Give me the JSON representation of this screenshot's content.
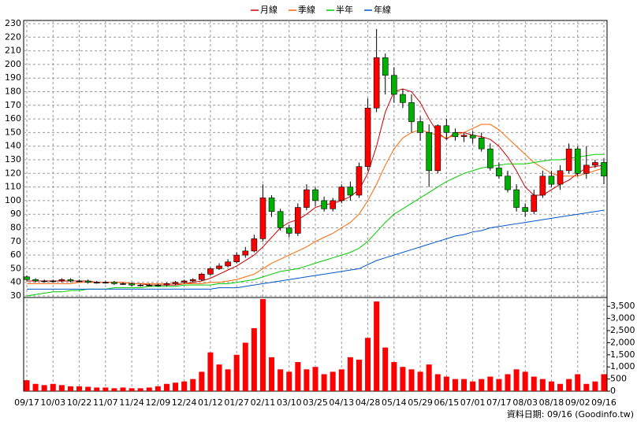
{
  "chart_data": {
    "type": "candlestick",
    "categories": [
      "09/17",
      null,
      null,
      "10/03",
      null,
      null,
      "10/22",
      null,
      null,
      "11/07",
      null,
      null,
      "11/24",
      null,
      null,
      "12/09",
      null,
      null,
      "12/24",
      null,
      null,
      "01/12",
      null,
      null,
      "01/27",
      null,
      null,
      "02/11",
      null,
      null,
      "03/10",
      null,
      null,
      "03/25",
      null,
      null,
      "04/13",
      null,
      null,
      "04/28",
      null,
      null,
      "05/14",
      null,
      null,
      "05/29",
      null,
      null,
      "06/15",
      null,
      null,
      "07/01",
      null,
      null,
      "07/17",
      null,
      null,
      "08/03",
      null,
      null,
      "08/18",
      null,
      null,
      "09/02",
      null,
      null,
      "09/16"
    ],
    "open": [
      44,
      42,
      41,
      41,
      41,
      42,
      41,
      41,
      40,
      40,
      40,
      39,
      39,
      38,
      38,
      38,
      38,
      39,
      40,
      41,
      42,
      46,
      50,
      52,
      55,
      60,
      63,
      72,
      102,
      92,
      80,
      76,
      95,
      108,
      100,
      94,
      100,
      110,
      104,
      125,
      168,
      205,
      192,
      178,
      172,
      158,
      150,
      122,
      155,
      150,
      147,
      148,
      146,
      138,
      124,
      118,
      108,
      95,
      92,
      104,
      118,
      112,
      122,
      138,
      120,
      126,
      128
    ],
    "high": [
      45,
      43,
      42,
      42,
      43,
      43,
      42,
      42,
      41,
      41,
      41,
      40,
      40,
      39,
      39,
      39,
      40,
      41,
      42,
      43,
      47,
      51,
      54,
      57,
      62,
      66,
      75,
      112,
      104,
      94,
      82,
      98,
      112,
      110,
      103,
      102,
      112,
      114,
      128,
      175,
      226,
      208,
      198,
      182,
      178,
      162,
      156,
      156,
      160,
      153,
      150,
      151,
      150,
      142,
      128,
      122,
      112,
      98,
      108,
      122,
      122,
      126,
      142,
      140,
      140,
      130,
      131
    ],
    "low": [
      41,
      40,
      40,
      40,
      40,
      40,
      40,
      39,
      39,
      39,
      38,
      38,
      37,
      37,
      37,
      37,
      37,
      38,
      39,
      40,
      41,
      45,
      49,
      51,
      54,
      58,
      62,
      70,
      88,
      78,
      73,
      74,
      93,
      96,
      92,
      92,
      98,
      100,
      102,
      122,
      165,
      178,
      172,
      168,
      150,
      144,
      110,
      120,
      145,
      144,
      143,
      142,
      136,
      122,
      116,
      106,
      92,
      88,
      90,
      102,
      110,
      108,
      120,
      118,
      116,
      124,
      112
    ],
    "close": [
      42,
      41,
      41,
      41,
      42,
      41,
      41,
      40,
      40,
      40,
      39,
      39,
      38,
      38,
      38,
      38,
      39,
      40,
      41,
      42,
      46,
      50,
      52,
      55,
      60,
      63,
      72,
      102,
      92,
      80,
      76,
      95,
      108,
      100,
      94,
      100,
      110,
      104,
      125,
      168,
      205,
      192,
      178,
      172,
      158,
      150,
      122,
      155,
      150,
      147,
      148,
      146,
      138,
      124,
      118,
      108,
      95,
      92,
      104,
      118,
      112,
      122,
      138,
      120,
      126,
      128,
      118
    ],
    "up_color": "#ff0000",
    "down_color": "#00b000",
    "series": [
      {
        "name": "月線",
        "color": "#cc0000",
        "values": [
          41,
          41,
          41,
          41,
          41,
          41,
          41,
          41,
          40,
          40,
          40,
          40,
          39,
          39,
          38,
          38,
          38,
          38,
          39,
          40,
          41,
          43,
          46,
          49,
          52,
          56,
          60,
          66,
          73,
          80,
          84,
          86,
          90,
          95,
          97,
          98,
          100,
          103,
          108,
          120,
          140,
          165,
          180,
          182,
          180,
          172,
          160,
          150,
          145,
          150,
          150,
          148,
          147,
          145,
          140,
          132,
          122,
          110,
          104,
          104,
          108,
          112,
          115,
          120,
          124,
          125,
          126
        ]
      },
      {
        "name": "季線",
        "color": "#ff6600",
        "values": [
          39,
          39,
          39,
          39,
          39,
          39,
          40,
          40,
          40,
          40,
          40,
          40,
          39,
          39,
          39,
          39,
          39,
          39,
          39,
          39,
          39,
          40,
          40,
          41,
          42,
          44,
          46,
          50,
          54,
          57,
          60,
          63,
          66,
          70,
          73,
          76,
          80,
          84,
          90,
          100,
          112,
          126,
          138,
          146,
          150,
          152,
          150,
          148,
          146,
          148,
          150,
          153,
          156,
          156,
          152,
          146,
          140,
          134,
          128,
          124,
          120,
          118,
          118,
          118,
          120,
          122,
          124
        ]
      },
      {
        "name": "半年",
        "color": "#00cc00",
        "values": [
          30,
          31,
          32,
          33,
          33,
          34,
          34,
          35,
          35,
          35,
          36,
          36,
          36,
          36,
          37,
          37,
          37,
          37,
          38,
          38,
          38,
          38,
          39,
          39,
          40,
          41,
          42,
          44,
          46,
          48,
          49,
          50,
          52,
          54,
          56,
          58,
          60,
          62,
          65,
          70,
          77,
          84,
          90,
          94,
          98,
          102,
          106,
          110,
          114,
          117,
          120,
          122,
          124,
          125,
          126,
          127,
          127,
          127,
          128,
          129,
          130,
          130,
          131,
          132,
          133,
          134,
          134
        ]
      },
      {
        "name": "年線",
        "color": "#0055cc",
        "values": [
          35,
          35,
          35,
          35,
          35,
          35,
          35,
          35,
          35,
          35,
          35,
          35,
          35,
          35,
          35,
          35,
          35,
          35,
          35,
          35,
          35,
          35,
          36,
          36,
          36,
          37,
          38,
          39,
          40,
          41,
          42,
          43,
          44,
          45,
          46,
          47,
          48,
          49,
          50,
          53,
          56,
          58,
          60,
          62,
          64,
          66,
          68,
          70,
          72,
          74,
          75,
          77,
          78,
          80,
          81,
          82,
          83,
          84,
          85,
          86,
          87,
          88,
          89,
          90,
          91,
          92,
          93
        ]
      }
    ],
    "ylim": [
      30,
      230
    ],
    "yticks": [
      30,
      40,
      50,
      60,
      70,
      80,
      90,
      100,
      110,
      120,
      130,
      140,
      150,
      160,
      170,
      180,
      190,
      200,
      210,
      220,
      230
    ],
    "grid": true,
    "volume": {
      "color": "#ff0000",
      "values": [
        450,
        300,
        250,
        300,
        250,
        200,
        200,
        180,
        150,
        150,
        120,
        150,
        120,
        120,
        150,
        200,
        300,
        350,
        400,
        500,
        800,
        1600,
        1100,
        900,
        1500,
        2000,
        2600,
        3800,
        1400,
        900,
        800,
        1200,
        900,
        1000,
        700,
        800,
        900,
        1400,
        1300,
        2200,
        3700,
        1800,
        1200,
        1000,
        900,
        800,
        1100,
        700,
        600,
        500,
        500,
        400,
        500,
        600,
        500,
        700,
        900,
        800,
        600,
        500,
        400,
        300,
        500,
        700,
        300,
        400,
        700
      ],
      "ylim": [
        0,
        3800
      ],
      "yticks": [
        0,
        500,
        {
          "value": 1000,
          "label": "1,000"
        },
        {
          "value": 1500,
          "label": "1,500"
        },
        {
          "value": 2000,
          "label": "2,000"
        },
        {
          "value": 2500,
          "label": "2,500"
        },
        {
          "value": 3000,
          "label": "3,000"
        },
        {
          "value": 3500,
          "label": "3,500"
        }
      ]
    }
  },
  "footer": "資料日期: 09/16 (Goodinfo.tw)"
}
